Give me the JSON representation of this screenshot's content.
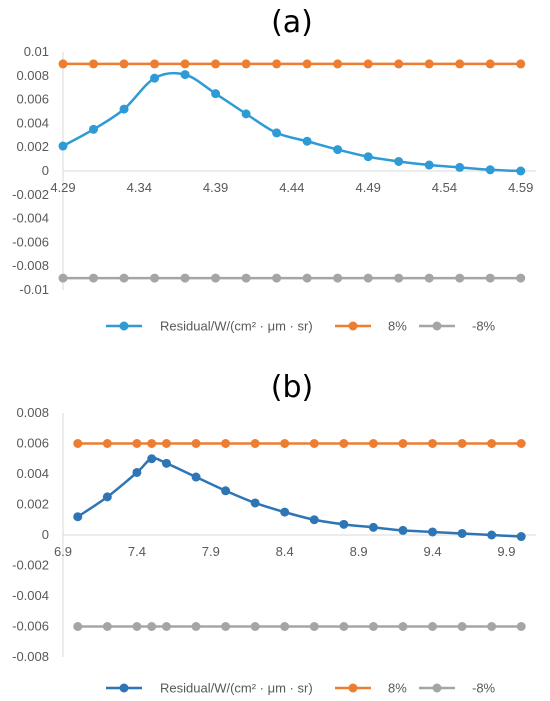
{
  "chart_data": [
    {
      "type": "line",
      "panel_label": "(a)",
      "x": [
        4.29,
        4.31,
        4.33,
        4.35,
        4.37,
        4.39,
        4.41,
        4.43,
        4.45,
        4.47,
        4.49,
        4.51,
        4.53,
        4.55,
        4.57,
        4.59
      ],
      "series": [
        {
          "name": "Residual/W/(cm² · μm · sr)",
          "color": "#2E9BD6",
          "values": [
            0.0021,
            0.0035,
            0.0052,
            0.0078,
            0.0081,
            0.0065,
            0.0048,
            0.0032,
            0.0025,
            0.0018,
            0.0012,
            0.0008,
            0.0005,
            0.0003,
            0.0001,
            0.0
          ]
        },
        {
          "name": "8%",
          "color": "#ED7D31",
          "values": [
            0.009,
            0.009,
            0.009,
            0.009,
            0.009,
            0.009,
            0.009,
            0.009,
            0.009,
            0.009,
            0.009,
            0.009,
            0.009,
            0.009,
            0.009,
            0.009
          ]
        },
        {
          "name": "-8%",
          "color": "#A5A5A5",
          "values": [
            -0.009,
            -0.009,
            -0.009,
            -0.009,
            -0.009,
            -0.009,
            -0.009,
            -0.009,
            -0.009,
            -0.009,
            -0.009,
            -0.009,
            -0.009,
            -0.009,
            -0.009,
            -0.009
          ]
        }
      ],
      "xlim": [
        4.29,
        4.6
      ],
      "ylim": [
        -0.01,
        0.01
      ],
      "y_ticks": [
        "0.01",
        "0.008",
        "0.006",
        "0.004",
        "0.002",
        "0",
        "-0.002",
        "-0.004",
        "-0.006",
        "-0.008",
        "-0.01"
      ],
      "y_tick_values": [
        0.01,
        0.008,
        0.006,
        0.004,
        0.002,
        0,
        -0.002,
        -0.004,
        -0.006,
        -0.008,
        -0.01
      ],
      "x_ticks": [
        "4.29",
        "4.34",
        "4.39",
        "4.44",
        "4.49",
        "4.54",
        "4.59"
      ],
      "x_tick_values": [
        4.29,
        4.34,
        4.39,
        4.44,
        4.49,
        4.54,
        4.59
      ],
      "grid": false,
      "legend_position": "bottom"
    },
    {
      "type": "line",
      "panel_label": "(b)",
      "x": [
        7.0,
        7.2,
        7.4,
        7.5,
        7.6,
        7.8,
        8.0,
        8.2,
        8.4,
        8.6,
        8.8,
        9.0,
        9.2,
        9.4,
        9.6,
        9.8,
        10.0
      ],
      "series": [
        {
          "name": "Residual/W/(cm² · μm · sr)",
          "color": "#2E75B6",
          "values": [
            0.0012,
            0.0025,
            0.0041,
            0.005,
            0.0047,
            0.0038,
            0.0029,
            0.0021,
            0.0015,
            0.001,
            0.0007,
            0.0005,
            0.0003,
            0.0002,
            0.0001,
            0.0,
            -0.0001
          ]
        },
        {
          "name": "8%",
          "color": "#ED7D31",
          "values": [
            0.006,
            0.006,
            0.006,
            0.006,
            0.006,
            0.006,
            0.006,
            0.006,
            0.006,
            0.006,
            0.006,
            0.006,
            0.006,
            0.006,
            0.006,
            0.006,
            0.006
          ]
        },
        {
          "name": "-8%",
          "color": "#A5A5A5",
          "values": [
            -0.006,
            -0.006,
            -0.006,
            -0.006,
            -0.006,
            -0.006,
            -0.006,
            -0.006,
            -0.006,
            -0.006,
            -0.006,
            -0.006,
            -0.006,
            -0.006,
            -0.006,
            -0.006,
            -0.006
          ]
        }
      ],
      "xlim": [
        6.9,
        10.1
      ],
      "ylim": [
        -0.008,
        0.008
      ],
      "y_ticks": [
        "0.008",
        "0.006",
        "0.004",
        "0.002",
        "0",
        "-0.002",
        "-0.004",
        "-0.006",
        "-0.008"
      ],
      "y_tick_values": [
        0.008,
        0.006,
        0.004,
        0.002,
        0,
        -0.002,
        -0.004,
        -0.006,
        -0.008
      ],
      "x_ticks": [
        "6.9",
        "7.4",
        "7.9",
        "8.4",
        "8.9",
        "9.4",
        "9.9"
      ],
      "x_tick_values": [
        6.9,
        7.4,
        7.9,
        8.4,
        8.9,
        9.4,
        9.9
      ],
      "grid": false,
      "legend_position": "bottom"
    }
  ]
}
